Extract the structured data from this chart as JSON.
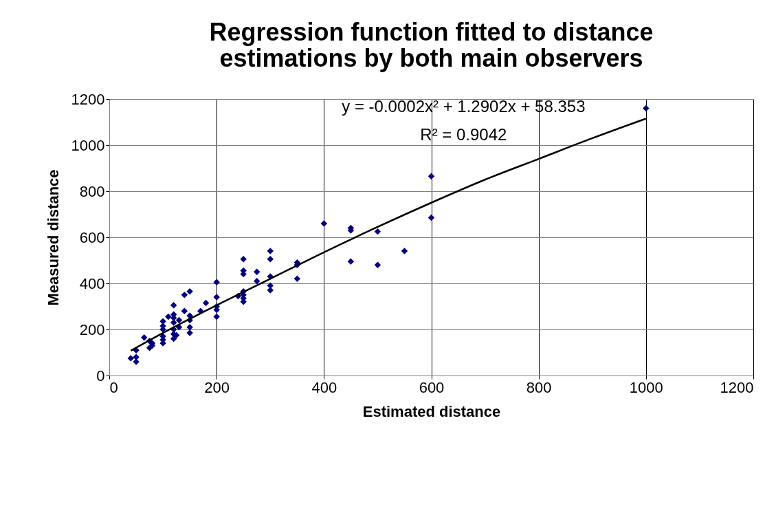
{
  "chart_data": {
    "type": "scatter",
    "title": "Regression function fitted to distance estimations by both main observers",
    "xlabel": "Estimated distance",
    "ylabel": "Measured distance",
    "xlim": [
      0,
      1200
    ],
    "xticks": [
      0,
      200,
      400,
      600,
      800,
      1000,
      1200
    ],
    "ylim": [
      0,
      1200
    ],
    "yticks": [
      0,
      200,
      400,
      600,
      800,
      1000,
      1200
    ],
    "grid": true,
    "annotations": [
      "y = -0.0002x² + 1.2902x + 58.353",
      "R² = 0.9042"
    ],
    "series": [
      {
        "color": "#000080",
        "marker": "diamond",
        "x": [
          40,
          50,
          50,
          50,
          65,
          75,
          75,
          80,
          80,
          100,
          100,
          100,
          100,
          100,
          100,
          110,
          120,
          120,
          120,
          120,
          120,
          120,
          120,
          130,
          130,
          125,
          140,
          140,
          150,
          150,
          150,
          150,
          150,
          170,
          180,
          200,
          200,
          200,
          200,
          200,
          240,
          250,
          250,
          250,
          250,
          250,
          250,
          250,
          275,
          275,
          300,
          300,
          300,
          300,
          300,
          350,
          350,
          350,
          400,
          450,
          450,
          450,
          500,
          500,
          550,
          600,
          600,
          1000
        ],
        "values": [
          75,
          60,
          80,
          110,
          165,
          150,
          120,
          140,
          130,
          140,
          155,
          170,
          200,
          215,
          235,
          255,
          160,
          180,
          200,
          230,
          250,
          265,
          305,
          240,
          210,
          175,
          280,
          350,
          185,
          210,
          240,
          260,
          365,
          280,
          315,
          255,
          285,
          300,
          340,
          405,
          345,
          320,
          335,
          350,
          365,
          440,
          455,
          505,
          410,
          450,
          370,
          390,
          430,
          505,
          540,
          420,
          480,
          490,
          660,
          495,
          630,
          640,
          480,
          625,
          540,
          685,
          865,
          1160
        ]
      },
      {
        "type": "line",
        "color": "#000000",
        "line_style": "solid",
        "marker": "none",
        "x": [
          40,
          100,
          200,
          300,
          400,
          500,
          600,
          700,
          800,
          900,
          1000
        ],
        "values": [
          108,
          185,
          305,
          420,
          535,
          645,
          750,
          850,
          940,
          1030,
          1115
        ]
      }
    ]
  }
}
